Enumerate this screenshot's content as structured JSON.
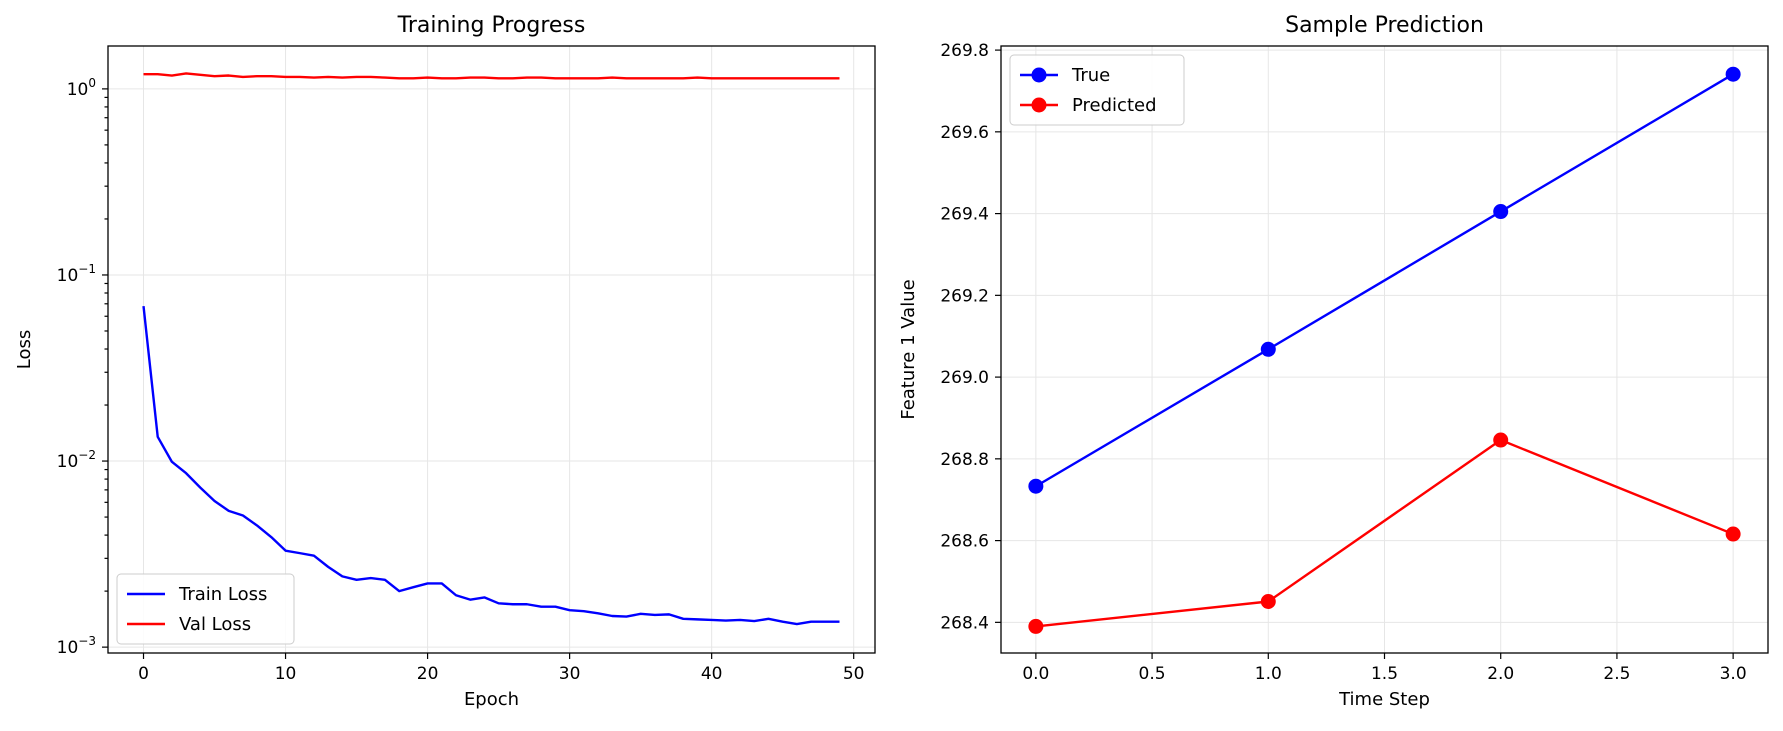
{
  "chart_data": [
    {
      "type": "line",
      "title": "Training Progress",
      "xlabel": "Epoch",
      "ylabel": "Loss",
      "yscale": "log",
      "xlim": [
        -2.5,
        51.5
      ],
      "ylim": [
        0.00093,
        1.7
      ],
      "x_ticks": [
        0,
        10,
        20,
        30,
        40,
        50
      ],
      "x_tick_labels": [
        "0",
        "10",
        "20",
        "30",
        "40",
        "50"
      ],
      "y_ticks": [
        0.001,
        0.01,
        0.1,
        1
      ],
      "y_tick_labels": [
        {
          "base": "10",
          "exp": "−3"
        },
        {
          "base": "10",
          "exp": "−2"
        },
        {
          "base": "10",
          "exp": "−1"
        },
        {
          "base": "10",
          "exp": "0"
        }
      ],
      "grid": true,
      "legend_position": "lower-left",
      "series": [
        {
          "name": "Train Loss",
          "color": "#0000ff",
          "x": [
            0,
            1,
            2,
            3,
            4,
            5,
            6,
            7,
            8,
            9,
            10,
            11,
            12,
            13,
            14,
            15,
            16,
            17,
            18,
            19,
            20,
            21,
            22,
            23,
            24,
            25,
            26,
            27,
            28,
            29,
            30,
            31,
            32,
            33,
            34,
            35,
            36,
            37,
            38,
            39,
            40,
            41,
            42,
            43,
            44,
            45,
            46,
            47,
            48,
            49
          ],
          "y": [
            0.068,
            0.0135,
            0.0099,
            0.0086,
            0.0072,
            0.0061,
            0.0054,
            0.0051,
            0.0045,
            0.0039,
            0.0033,
            0.0032,
            0.0031,
            0.0027,
            0.0024,
            0.0023,
            0.00235,
            0.0023,
            0.002,
            0.0021,
            0.0022,
            0.0022,
            0.0019,
            0.0018,
            0.00185,
            0.00172,
            0.0017,
            0.0017,
            0.00165,
            0.00165,
            0.00158,
            0.00156,
            0.00152,
            0.00147,
            0.00146,
            0.00151,
            0.00149,
            0.0015,
            0.00142,
            0.00141,
            0.0014,
            0.00139,
            0.0014,
            0.00138,
            0.00142,
            0.00137,
            0.00133,
            0.00137,
            0.00137,
            0.00137
          ]
        },
        {
          "name": "Val Loss",
          "color": "#ff0000",
          "x": [
            0,
            1,
            2,
            3,
            4,
            5,
            6,
            7,
            8,
            9,
            10,
            11,
            12,
            13,
            14,
            15,
            16,
            17,
            18,
            19,
            20,
            21,
            22,
            23,
            24,
            25,
            26,
            27,
            28,
            29,
            30,
            31,
            32,
            33,
            34,
            35,
            36,
            37,
            38,
            39,
            40,
            41,
            42,
            43,
            44,
            45,
            46,
            47,
            48,
            49
          ],
          "y": [
            1.2,
            1.2,
            1.18,
            1.21,
            1.19,
            1.17,
            1.18,
            1.16,
            1.17,
            1.17,
            1.16,
            1.16,
            1.15,
            1.16,
            1.15,
            1.16,
            1.16,
            1.15,
            1.14,
            1.14,
            1.15,
            1.14,
            1.14,
            1.15,
            1.15,
            1.14,
            1.14,
            1.15,
            1.15,
            1.14,
            1.14,
            1.14,
            1.14,
            1.15,
            1.14,
            1.14,
            1.14,
            1.14,
            1.14,
            1.15,
            1.14,
            1.14,
            1.14,
            1.14,
            1.14,
            1.14,
            1.14,
            1.14,
            1.14,
            1.14
          ]
        }
      ]
    },
    {
      "type": "line",
      "title": "Sample Prediction",
      "xlabel": "Time Step",
      "ylabel": "Feature 1 Value",
      "xlim": [
        -0.15,
        3.15
      ],
      "ylim": [
        268.325,
        269.81
      ],
      "x_ticks": [
        0.0,
        0.5,
        1.0,
        1.5,
        2.0,
        2.5,
        3.0
      ],
      "x_tick_labels": [
        "0.0",
        "0.5",
        "1.0",
        "1.5",
        "2.0",
        "2.5",
        "3.0"
      ],
      "y_ticks": [
        268.4,
        268.6,
        268.8,
        269.0,
        269.2,
        269.4,
        269.6,
        269.8
      ],
      "y_tick_labels": [
        "268.4",
        "268.6",
        "268.8",
        "269.0",
        "269.2",
        "269.4",
        "269.6",
        "269.8"
      ],
      "grid": true,
      "legend_position": "upper-left",
      "series": [
        {
          "name": "True",
          "color": "#0000ff",
          "marker": "circle",
          "x": [
            0,
            1,
            2,
            3
          ],
          "y": [
            268.733,
            269.068,
            269.405,
            269.741
          ]
        },
        {
          "name": "Predicted",
          "color": "#ff0000",
          "marker": "circle",
          "x": [
            0,
            1,
            2,
            3
          ],
          "y": [
            268.39,
            268.451,
            268.846,
            268.616
          ]
        }
      ]
    }
  ]
}
